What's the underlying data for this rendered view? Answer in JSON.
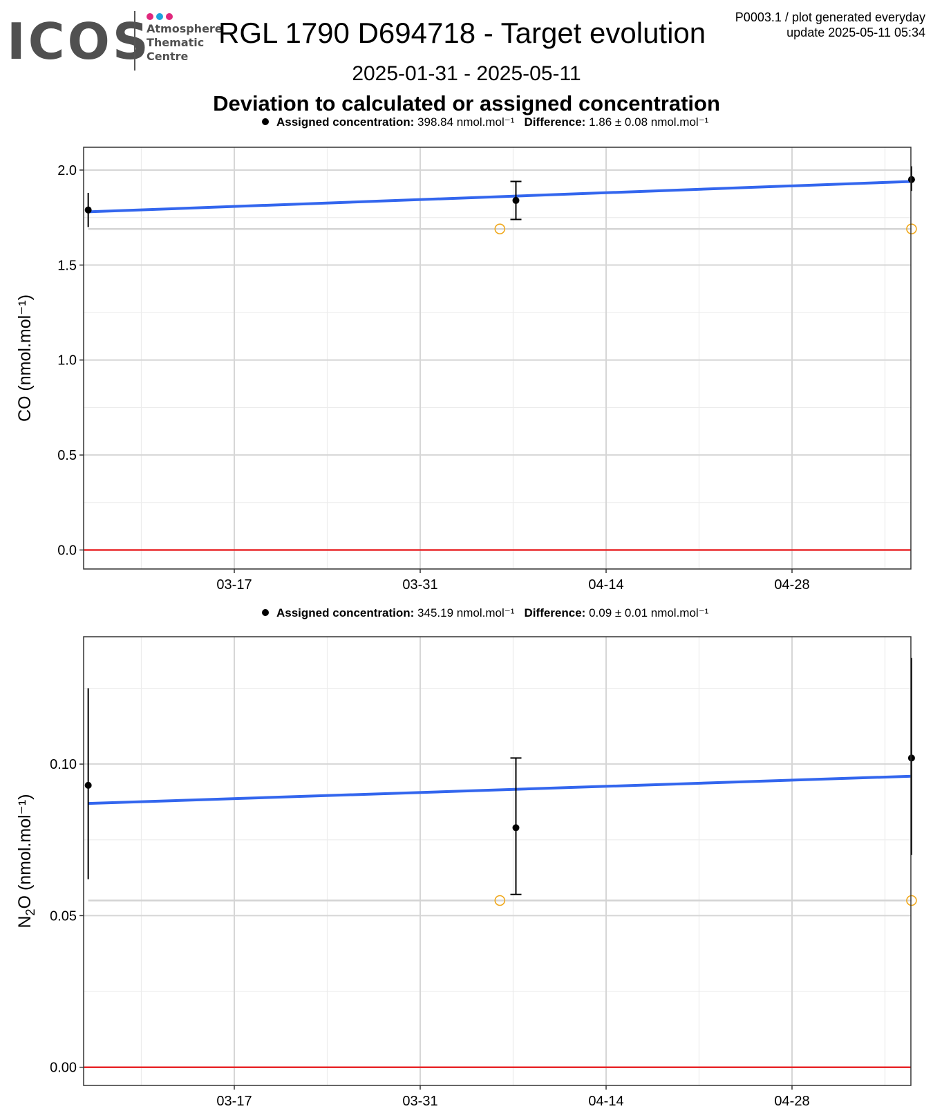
{
  "header": {
    "logo": {
      "brand": "ICOS",
      "lines": [
        "Atmosphere",
        "Thematic",
        "Centre"
      ],
      "dot_colors": [
        "#e0287d",
        "#1ca4de",
        "#e0287d"
      ]
    },
    "title": "RGL 1790 D694718 - Target evolution",
    "meta_line1": "P0003.1 / plot generated everyday",
    "meta_line2": "update  2025-05-11 05:34",
    "date_range": "2025-01-31 - 2025-05-11",
    "subtitle": "Deviation to calculated or assigned concentration"
  },
  "colors": {
    "trend": "#3366ee",
    "zero_line": "#e8292b",
    "points": "#000000",
    "reference_points": "#f0a81c",
    "reference_line": "#d3d3d3",
    "grid_major": "#d6d6d6",
    "grid_minor": "#ececec"
  },
  "chart_data": [
    {
      "type": "scatter",
      "gas": "CO",
      "ylabel": "CO (nmol.mol⁻¹)",
      "legend": {
        "label1": "Assigned concentration:",
        "value1": "398.84 nmol.mol⁻¹",
        "label2": "Difference:",
        "value2": "1.86 ± 0.08 nmol.mol⁻¹"
      },
      "x_ticks": [
        "03-17",
        "03-31",
        "04-14",
        "04-28"
      ],
      "xlim": [
        "2025-03-06",
        "2025-05-07"
      ],
      "ylim": [
        -0.1,
        2.12
      ],
      "y_ticks": [
        0.0,
        0.5,
        1.0,
        1.5,
        2.0
      ],
      "y_tick_labels": [
        "0.0",
        "0.5",
        "1.0",
        "1.5",
        "2.0"
      ],
      "points": [
        {
          "x": "2025-03-06",
          "y": 1.79,
          "err_low": 1.7,
          "err_high": 1.88,
          "cap": false
        },
        {
          "x": "2025-04-07",
          "y": 1.84,
          "err_low": 1.74,
          "err_high": 1.94,
          "cap": true
        },
        {
          "x": "2025-05-07",
          "y": 1.95,
          "err_low": 1.89,
          "err_high": 2.02,
          "cap": false
        }
      ],
      "reference_points": [
        {
          "x": "2025-04-06",
          "y": 1.69
        },
        {
          "x": "2025-05-07",
          "y": 1.69
        }
      ],
      "reference_level": 1.69,
      "trend": {
        "x0": "2025-03-06",
        "y0": 1.78,
        "x1": "2025-05-07",
        "y1": 1.94
      },
      "zero_line": 0
    },
    {
      "type": "scatter",
      "gas": "N2O",
      "ylabel_main": "N",
      "ylabel_sub": "2",
      "ylabel_rest": "O (nmol.mol⁻¹)",
      "legend": {
        "label1": "Assigned concentration:",
        "value1": "345.19 nmol.mol⁻¹",
        "label2": "Difference:",
        "value2": "0.09 ± 0.01 nmol.mol⁻¹"
      },
      "x_ticks": [
        "03-17",
        "03-31",
        "04-14",
        "04-28"
      ],
      "xlim": [
        "2025-03-06",
        "2025-05-07"
      ],
      "ylim": [
        -0.006,
        0.142
      ],
      "y_ticks": [
        0.0,
        0.05,
        0.1
      ],
      "y_tick_labels": [
        "0.00",
        "0.05",
        "0.10"
      ],
      "points": [
        {
          "x": "2025-03-06",
          "y": 0.093,
          "err_low": 0.062,
          "err_high": 0.125,
          "cap": false
        },
        {
          "x": "2025-04-07",
          "y": 0.079,
          "err_low": 0.057,
          "err_high": 0.102,
          "cap": true
        },
        {
          "x": "2025-05-07",
          "y": 0.102,
          "err_low": 0.07,
          "err_high": 0.135,
          "cap": false
        }
      ],
      "reference_points": [
        {
          "x": "2025-04-06",
          "y": 0.055
        },
        {
          "x": "2025-05-07",
          "y": 0.055
        }
      ],
      "reference_level": 0.055,
      "trend": {
        "x0": "2025-03-06",
        "y0": 0.087,
        "x1": "2025-05-07",
        "y1": 0.096
      },
      "zero_line": 0
    }
  ]
}
